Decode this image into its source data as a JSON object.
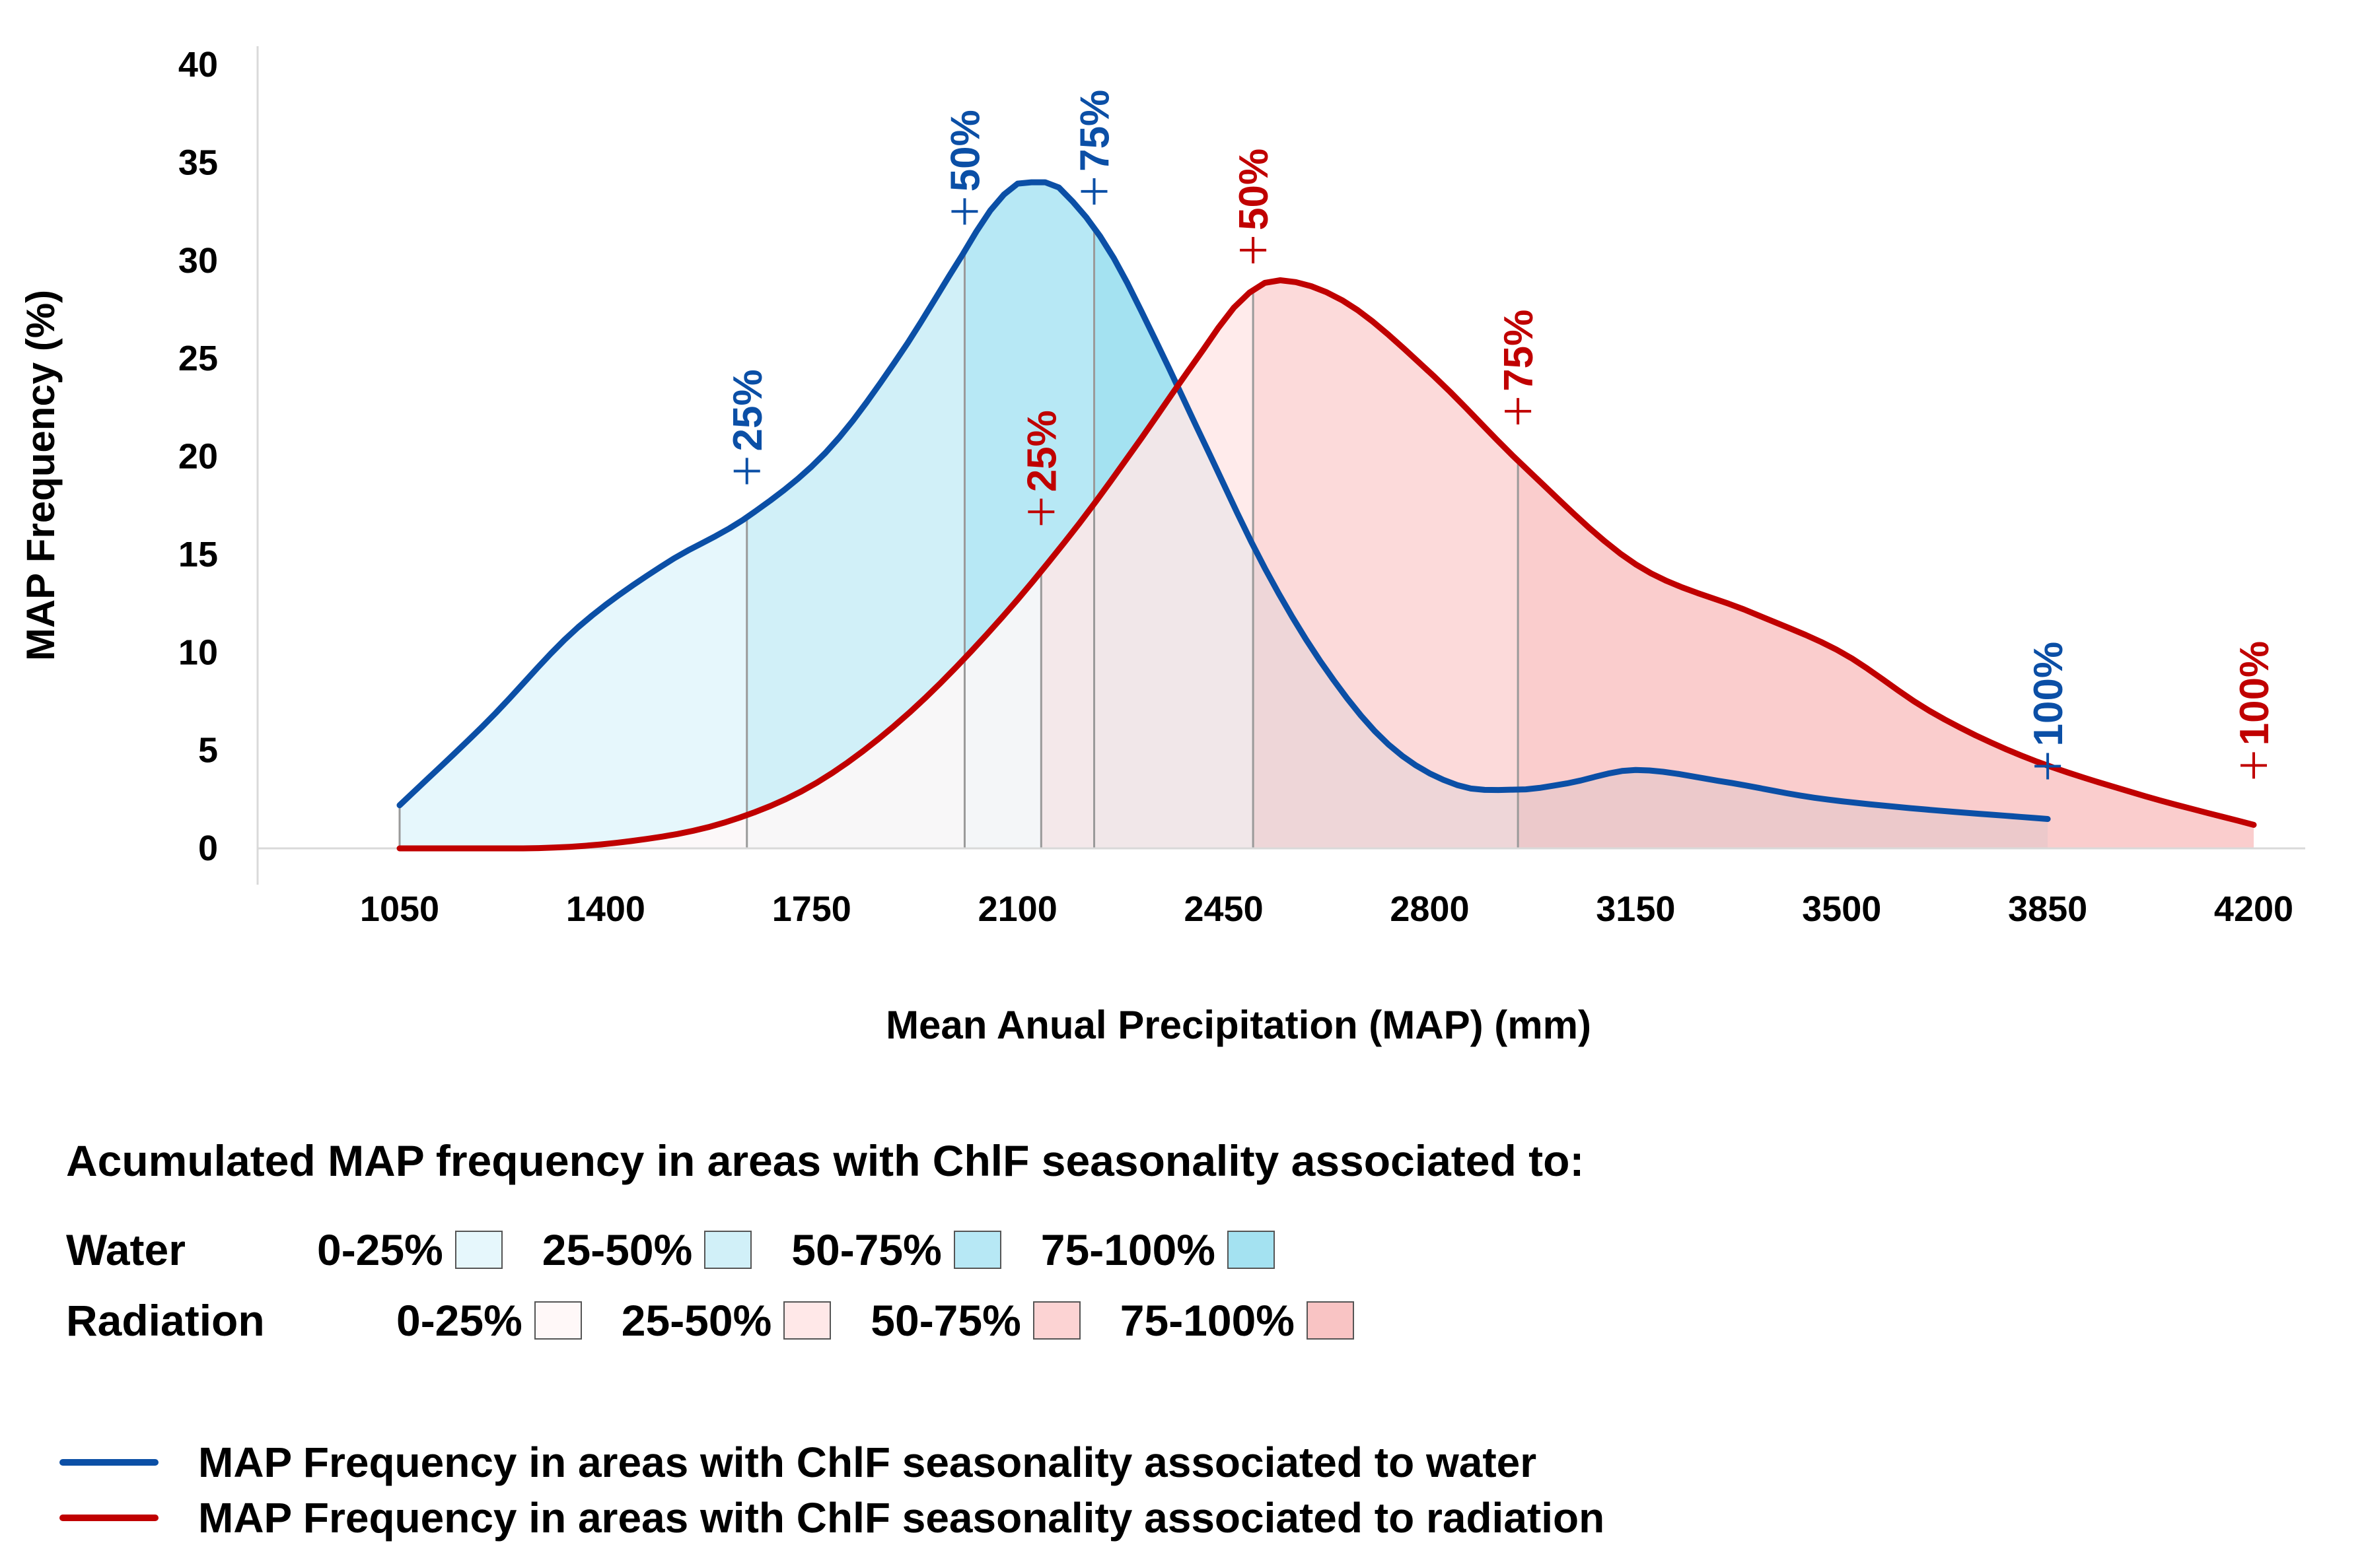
{
  "chart_data": {
    "type": "area",
    "title": "",
    "xlabel": "Mean Anual Precipitation (MAP) (mm)",
    "ylabel": "MAP Frequency (%)",
    "xlim": [
      875,
      4375
    ],
    "ylim": [
      0,
      40
    ],
    "x_ticks": [
      "1050",
      "1400",
      "1750",
      "2100",
      "2450",
      "2800",
      "3150",
      "3500",
      "3850",
      "4200"
    ],
    "y_ticks": [
      "0",
      "5",
      "10",
      "15",
      "20",
      "25",
      "30",
      "35",
      "40"
    ],
    "series": [
      {
        "name": "MAP Frequency in areas with ChlF seasonality associated to water",
        "color": "#0b4fa6",
        "x": [
          1050,
          1200,
          1350,
          1500,
          1640,
          1780,
          1900,
          2000,
          2060,
          2110,
          2150,
          2200,
          2260,
          2330,
          2420,
          2520,
          2620,
          2730,
          2850,
          2950,
          3030,
          3150,
          3300,
          3450,
          3600,
          3850
        ],
        "y": [
          2.2,
          6.5,
          11.2,
          14.5,
          16.9,
          20.4,
          25.2,
          30.0,
          32.8,
          34.0,
          34.0,
          32.8,
          30.3,
          26.2,
          20.5,
          14.3,
          9.3,
          5.3,
          3.2,
          3.0,
          3.3,
          4.0,
          3.4,
          2.6,
          2.1,
          1.5
        ],
        "quartiles": [
          {
            "label": "25%",
            "x": 1640
          },
          {
            "label": "50%",
            "x": 2010
          },
          {
            "label": "75%",
            "x": 2230
          },
          {
            "label": "100%",
            "x": 3850
          }
        ]
      },
      {
        "name": "MAP Frequency in areas with ChlF seasonality associated to radiation",
        "color": "#c00000",
        "x": [
          1050,
          1250,
          1450,
          1600,
          1750,
          1900,
          2050,
          2200,
          2300,
          2400,
          2480,
          2540,
          2650,
          2800,
          2960,
          3150,
          3350,
          3500,
          3650,
          3800,
          4000,
          4200
        ],
        "y": [
          0.0,
          0.0,
          0.4,
          1.3,
          3.2,
          6.5,
          11.0,
          16.4,
          20.5,
          24.8,
          28.0,
          29.0,
          28.0,
          24.3,
          19.5,
          14.5,
          12.0,
          10.0,
          7.0,
          4.8,
          2.8,
          1.2
        ],
        "quartiles": [
          {
            "label": "25%",
            "x": 2140
          },
          {
            "label": "50%",
            "x": 2500
          },
          {
            "label": "75%",
            "x": 2950
          },
          {
            "label": "100%",
            "x": 4200
          }
        ]
      }
    ],
    "band_fills": {
      "water": [
        "#e6f7fc",
        "#d1f0f8",
        "#b7e8f5",
        "#a4e2f1"
      ],
      "radiation": [
        "#fff8f8",
        "#ffe8e8",
        "#fcd3d3",
        "#f9c4c4"
      ]
    }
  },
  "legend": {
    "title": "Acumulated MAP frequency in areas with ChlF seasonality associated to:",
    "water_label": "Water",
    "radiation_label": "Radiation",
    "bands": [
      "0-25%",
      "25-50%",
      "50-75%",
      "75-100%"
    ],
    "water_colors": [
      "#e6f7fc",
      "#d1f0f8",
      "#b7e8f5",
      "#a4e2f1"
    ],
    "radiation_colors": [
      "#fff8f8",
      "#ffe8e8",
      "#fcd3d3",
      "#f9c4c4"
    ],
    "line_water": "MAP Frequency in areas with ChlF seasonality associated to water",
    "line_radiation": "MAP Frequency in areas with ChlF seasonality associated to radiation",
    "line_water_color": "#0b4fa6",
    "line_radiation_color": "#c00000"
  }
}
